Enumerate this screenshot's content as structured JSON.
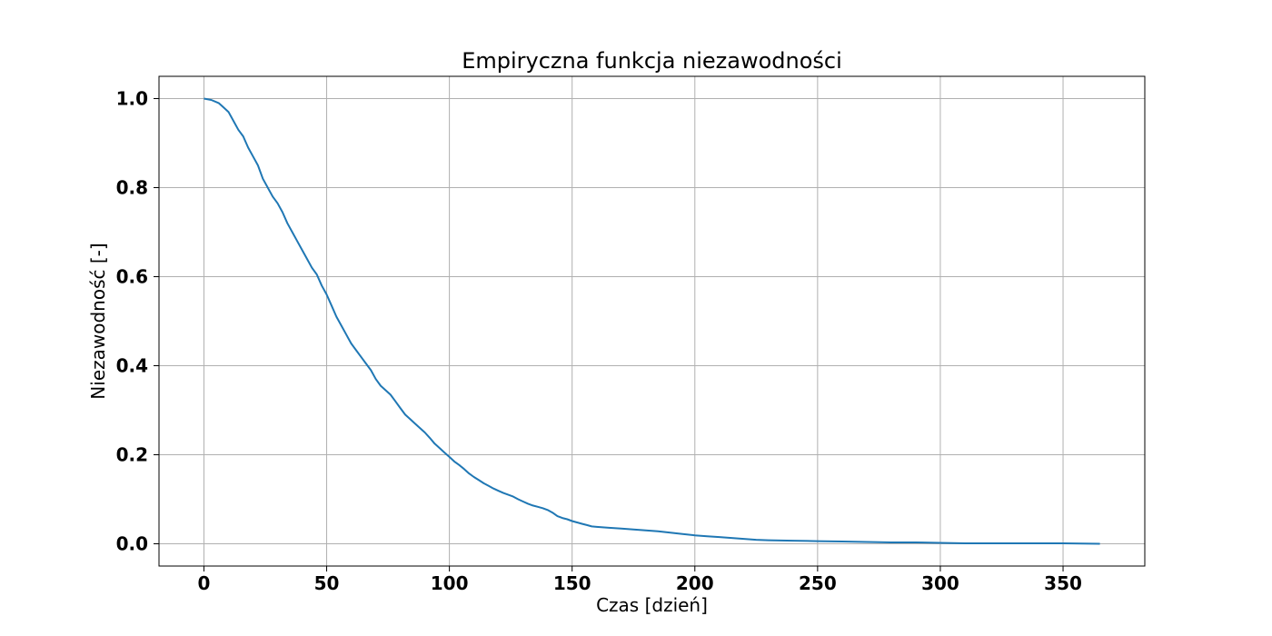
{
  "chart_data": {
    "type": "line",
    "title": "Empiryczna funkcja niezawodności",
    "xlabel": "Czas [dzień]",
    "ylabel": "Niezawodność [-]",
    "xlim": [
      -18.3,
      383.3
    ],
    "ylim": [
      -0.05,
      1.05
    ],
    "xticks": [
      0,
      50,
      100,
      150,
      200,
      250,
      300,
      350
    ],
    "xtick_labels": [
      "0",
      "50",
      "100",
      "150",
      "200",
      "250",
      "300",
      "350"
    ],
    "yticks": [
      0.0,
      0.2,
      0.4,
      0.6,
      0.8,
      1.0
    ],
    "ytick_labels": [
      "0.0",
      "0.2",
      "0.4",
      "0.6",
      "0.8",
      "1.0"
    ],
    "grid": true,
    "colors": {
      "series": "#1f77b4"
    },
    "series": [
      {
        "x": [
          0,
          3,
          6,
          8,
          10,
          12,
          14,
          16,
          18,
          20,
          22,
          24,
          26,
          28,
          30,
          32,
          34,
          36,
          38,
          40,
          42,
          44,
          46,
          48,
          50,
          52,
          54,
          56,
          58,
          60,
          62,
          64,
          66,
          68,
          70,
          72,
          74,
          76,
          78,
          80,
          82,
          84,
          86,
          88,
          90,
          92,
          94,
          96,
          98,
          100,
          102,
          104,
          106,
          108,
          110,
          112,
          114,
          116,
          118,
          120,
          122,
          124,
          126,
          128,
          130,
          132,
          134,
          136,
          138,
          140,
          142,
          144,
          146,
          148,
          150,
          152,
          154,
          156,
          158,
          160,
          165,
          170,
          175,
          180,
          185,
          190,
          195,
          200,
          205,
          210,
          215,
          220,
          225,
          230,
          240,
          250,
          260,
          270,
          280,
          290,
          300,
          310,
          320,
          330,
          340,
          350,
          365
        ],
        "y": [
          1.0,
          0.997,
          0.99,
          0.98,
          0.97,
          0.95,
          0.93,
          0.915,
          0.89,
          0.87,
          0.85,
          0.82,
          0.8,
          0.78,
          0.765,
          0.745,
          0.72,
          0.7,
          0.68,
          0.66,
          0.64,
          0.62,
          0.605,
          0.58,
          0.56,
          0.535,
          0.51,
          0.49,
          0.47,
          0.45,
          0.435,
          0.42,
          0.405,
          0.39,
          0.37,
          0.355,
          0.345,
          0.335,
          0.32,
          0.305,
          0.29,
          0.28,
          0.27,
          0.26,
          0.25,
          0.238,
          0.225,
          0.215,
          0.205,
          0.195,
          0.185,
          0.177,
          0.168,
          0.158,
          0.15,
          0.143,
          0.136,
          0.13,
          0.124,
          0.119,
          0.114,
          0.11,
          0.106,
          0.1,
          0.095,
          0.09,
          0.086,
          0.083,
          0.08,
          0.076,
          0.07,
          0.062,
          0.058,
          0.055,
          0.051,
          0.048,
          0.045,
          0.042,
          0.039,
          0.038,
          0.036,
          0.034,
          0.032,
          0.03,
          0.028,
          0.025,
          0.022,
          0.019,
          0.017,
          0.015,
          0.013,
          0.011,
          0.009,
          0.008,
          0.007,
          0.006,
          0.005,
          0.004,
          0.003,
          0.003,
          0.002,
          0.001,
          0.001,
          0.001,
          0.001,
          0.001,
          0.0
        ]
      }
    ]
  }
}
